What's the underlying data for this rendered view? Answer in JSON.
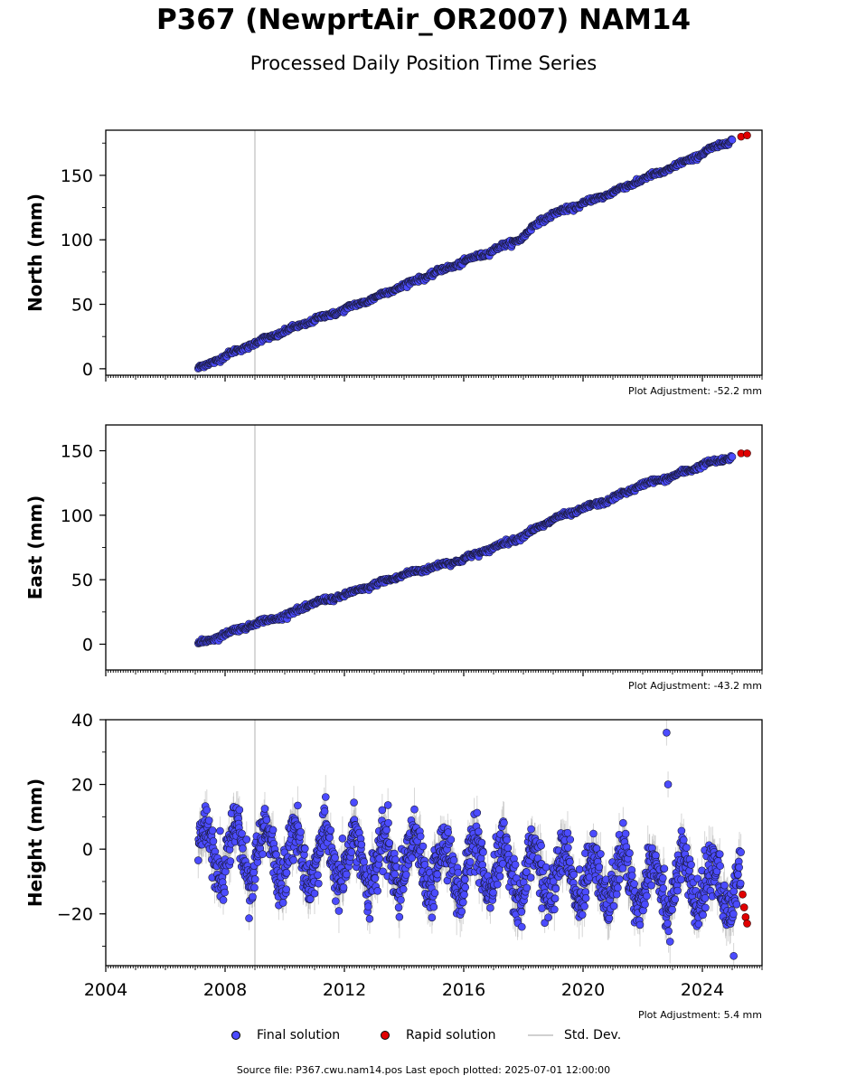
{
  "title": "P367 (NewprtAir_OR2007) NAM14",
  "subtitle": "Processed Daily Position Time Series",
  "legend": {
    "final": "Final solution",
    "rapid": "Rapid solution",
    "std": "Std. Dev."
  },
  "footer": "Source file: P367.cwu.nam14.pos  Last epoch plotted: 2025-07-01 12:00:00",
  "colors": {
    "final": "#4b4bff",
    "rapid": "#e00000",
    "std": "#c8c8c8",
    "event_line": "#cccccc"
  },
  "chart_data": [
    {
      "type": "scatter",
      "ylabel": "North (mm)",
      "adjustment": "Plot Adjustment: -52.2 mm",
      "xlim": [
        2004,
        2026
      ],
      "ylim": [
        -5,
        185
      ],
      "yticks": [
        0,
        50,
        100,
        150
      ],
      "event_line_x": 2009.0,
      "series": [
        {
          "name": "Final solution",
          "x": [
            2007.1,
            2008.0,
            2009.0,
            2010.0,
            2011.0,
            2012.0,
            2013.0,
            2014.0,
            2015.0,
            2016.0,
            2017.0,
            2018.0,
            2018.5,
            2019.0,
            2020.0,
            2021.0,
            2022.0,
            2023.0,
            2024.0,
            2025.0
          ],
          "y": [
            0,
            10,
            20,
            29,
            38,
            46,
            55,
            65,
            74,
            83,
            92,
            102,
            114,
            120,
            128,
            137,
            147,
            156,
            167,
            178
          ]
        },
        {
          "name": "Rapid solution",
          "x": [
            2025.3,
            2025.5
          ],
          "y": [
            180,
            181
          ]
        }
      ]
    },
    {
      "type": "scatter",
      "ylabel": "East (mm)",
      "adjustment": "Plot Adjustment: -43.2 mm",
      "xlim": [
        2004,
        2026
      ],
      "ylim": [
        -20,
        170
      ],
      "yticks": [
        0,
        50,
        100,
        150
      ],
      "event_line_x": 2009.0,
      "series": [
        {
          "name": "Final solution",
          "x": [
            2007.1,
            2008.0,
            2009.0,
            2010.0,
            2011.0,
            2012.0,
            2013.0,
            2014.0,
            2015.0,
            2016.0,
            2017.0,
            2018.0,
            2019.0,
            2020.0,
            2021.0,
            2022.0,
            2023.0,
            2024.0,
            2025.0
          ],
          "y": [
            0,
            8,
            16,
            22,
            32,
            38,
            46,
            54,
            60,
            66,
            75,
            84,
            97,
            105,
            113,
            124,
            130,
            139,
            145
          ]
        },
        {
          "name": "Rapid solution",
          "x": [
            2025.3,
            2025.5
          ],
          "y": [
            148,
            148
          ]
        }
      ]
    },
    {
      "type": "scatter",
      "ylabel": "Height (mm)",
      "adjustment": "Plot Adjustment: 5.4 mm",
      "xlim": [
        2004,
        2026
      ],
      "ylim": [
        -36,
        40
      ],
      "yticks": [
        -20,
        0,
        20,
        40
      ],
      "xticks": [
        2004,
        2008,
        2012,
        2016,
        2020,
        2024
      ],
      "event_line_x": 2009.0,
      "series": [
        {
          "name": "Final solution",
          "x_start": 2007.1,
          "x_end": 2025.3,
          "mean_start": 0,
          "mean_end": -12,
          "seasonal_amplitude": 8,
          "outliers": [
            {
              "x": 2022.8,
              "y": 36
            },
            {
              "x": 2022.85,
              "y": 20
            },
            {
              "x": 2025.05,
              "y": -33
            }
          ]
        },
        {
          "name": "Rapid solution",
          "x": [
            2025.35,
            2025.4,
            2025.45,
            2025.5
          ],
          "y": [
            -14,
            -18,
            -21,
            -23
          ]
        }
      ]
    }
  ]
}
